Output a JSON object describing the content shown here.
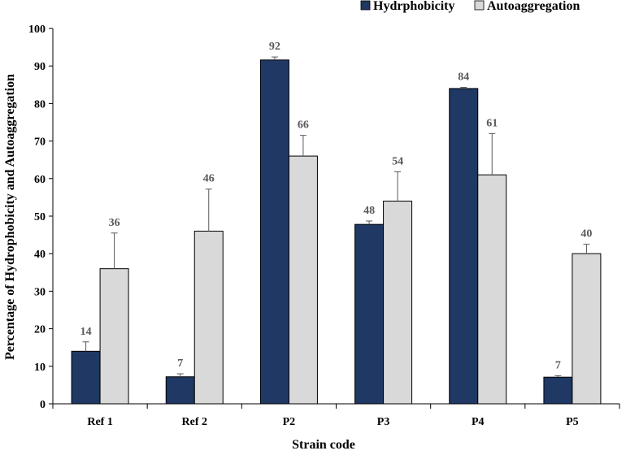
{
  "chart_data": {
    "type": "bar",
    "title": "",
    "xlabel": "Strain code",
    "ylabel": "Percentage of Hydrophobicity and Autoaggregation",
    "ylim": [
      0,
      100
    ],
    "yticks": [
      "0",
      "10",
      "20",
      "30",
      "40",
      "50",
      "60",
      "70",
      "80",
      "90",
      "100"
    ],
    "grid": false,
    "legend_position": "top-right",
    "categories": [
      "Ref 1",
      "Ref 2",
      "P2",
      "P3",
      "P4",
      "P5"
    ],
    "series": [
      {
        "name": "Hydrphobicity",
        "color": "#1f3864",
        "values": [
          14,
          7.2,
          91.6,
          47.8,
          84,
          7.1
        ],
        "labels": [
          "14",
          "7",
          "92",
          "48",
          "84",
          "7"
        ],
        "errors": [
          2.5,
          0.8,
          0.8,
          0.9,
          0.3,
          0.4
        ]
      },
      {
        "name": "Autoaggregation",
        "color": "#d9d9d9",
        "values": [
          36,
          46,
          66,
          54,
          61,
          40
        ],
        "labels": [
          "36",
          "46",
          "66",
          "54",
          "61",
          "40"
        ],
        "errors": [
          9.5,
          11.2,
          5.5,
          7.8,
          11,
          2.5
        ]
      }
    ]
  }
}
